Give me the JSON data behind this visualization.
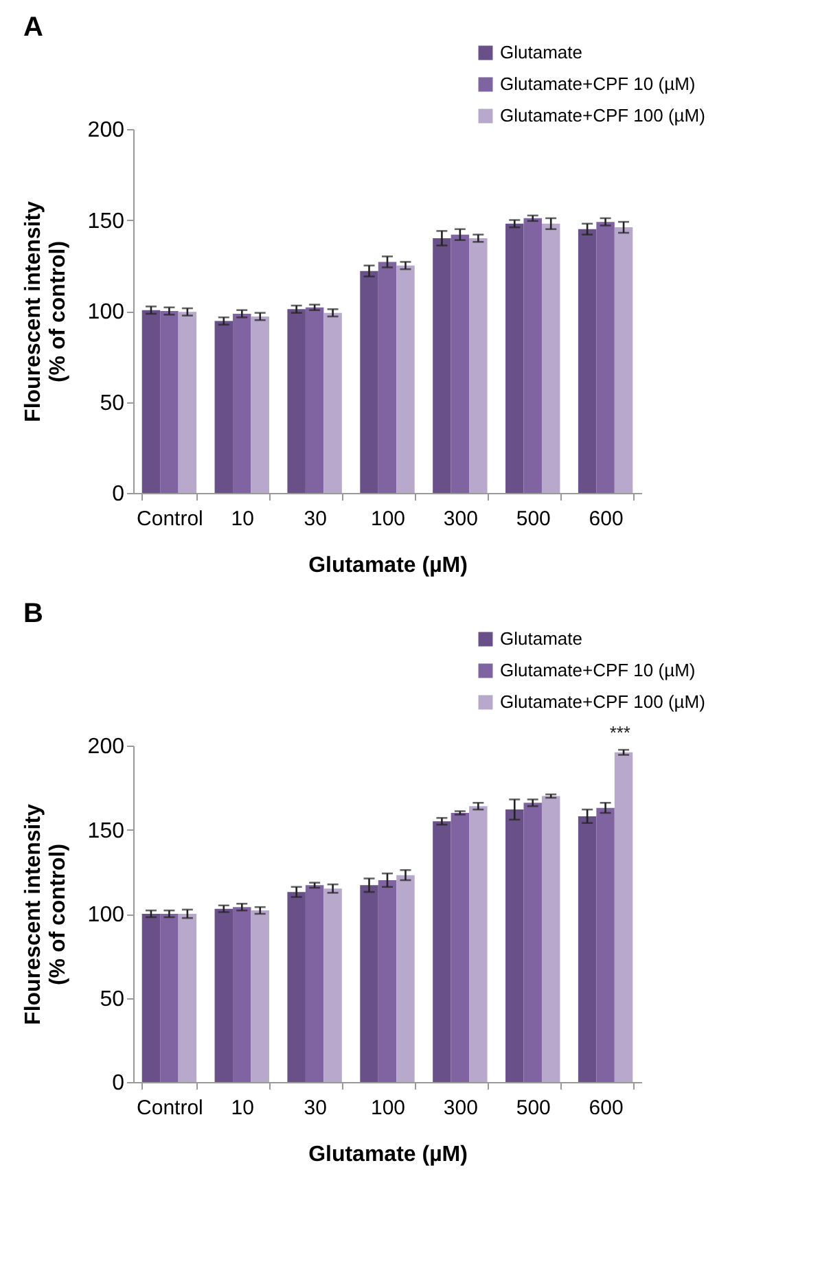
{
  "chart_data": [
    {
      "type": "bar",
      "title": "A",
      "xlabel": "Glutamate (µM)",
      "ylabel": "Flourescent intensity (% of control)",
      "categories": [
        "Control",
        "10",
        "30",
        "100",
        "300",
        "500",
        "600"
      ],
      "ylim": [
        0,
        200
      ],
      "yticks": [
        0,
        50,
        100,
        150,
        200
      ],
      "grid": false,
      "legend": "top right",
      "series": [
        {
          "name": "Glutamate",
          "color": "#6a5088",
          "values": [
            100.5,
            94.5,
            101,
            122,
            140,
            148,
            145
          ],
          "errors": [
            2,
            2,
            2,
            3,
            4,
            2,
            3
          ]
        },
        {
          "name": "Glutamate+CPF 10 (µM)",
          "color": "#8064a2",
          "values": [
            100,
            98.5,
            102,
            127,
            142,
            151,
            149
          ],
          "errors": [
            2,
            2,
            1.5,
            3,
            3,
            1.5,
            2
          ]
        },
        {
          "name": "Glutamate+CPF 100 (µM)",
          "color": "#b7a8cc",
          "values": [
            99.5,
            97,
            99,
            125,
            140,
            148,
            146
          ],
          "errors": [
            2,
            2,
            2,
            2,
            2,
            3,
            3
          ]
        }
      ]
    },
    {
      "type": "bar",
      "title": "B",
      "xlabel": "Glutamate (µM)",
      "ylabel": "Flourescent intensity (% of control)",
      "categories": [
        "Control",
        "10",
        "30",
        "100",
        "300",
        "500",
        "600"
      ],
      "ylim": [
        0,
        200
      ],
      "yticks": [
        0,
        50,
        100,
        150,
        200
      ],
      "grid": false,
      "legend": "top right",
      "annotations": [
        "***"
      ],
      "series": [
        {
          "name": "Glutamate",
          "color": "#6a5088",
          "values": [
            100,
            103,
            113,
            117,
            155,
            162,
            158
          ],
          "errors": [
            2,
            2,
            3,
            4,
            2,
            6,
            4
          ]
        },
        {
          "name": "Glutamate+CPF 10 (µM)",
          "color": "#8064a2",
          "values": [
            100,
            104,
            117,
            120,
            160,
            166,
            163
          ],
          "errors": [
            2,
            2,
            1.5,
            4,
            1,
            2,
            3
          ]
        },
        {
          "name": "Glutamate+CPF 100 (µM)",
          "color": "#b7a8cc",
          "values": [
            100,
            102,
            115,
            123,
            164,
            170,
            196
          ],
          "errors": [
            2.5,
            2,
            2.5,
            3,
            2,
            1,
            1.5
          ]
        }
      ]
    }
  ]
}
